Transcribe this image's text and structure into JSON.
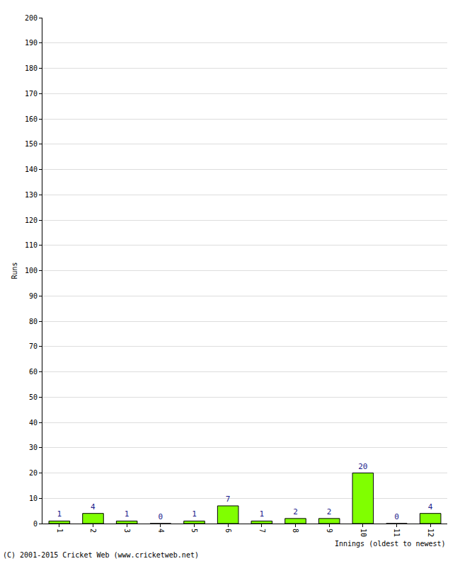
{
  "chart_data": {
    "type": "bar",
    "x_label": "Innings (oldest to newest)",
    "y_label": "Runs",
    "categories": [
      "1",
      "2",
      "3",
      "4",
      "5",
      "6",
      "7",
      "8",
      "9",
      "10",
      "11",
      "12"
    ],
    "values": [
      1,
      4,
      1,
      0,
      1,
      7,
      1,
      2,
      2,
      20,
      0,
      4
    ],
    "color": "#80ff00",
    "ylim": [
      0,
      200
    ],
    "yticks": [
      0,
      10,
      20,
      30,
      40,
      50,
      60,
      70,
      80,
      90,
      100,
      110,
      120,
      130,
      140,
      150,
      160,
      170,
      180,
      190,
      200
    ],
    "grid": true,
    "data_labels": true,
    "annotations": [
      "(C) 2001-2015 Cricket Web (www.cricketweb.net)"
    ]
  }
}
